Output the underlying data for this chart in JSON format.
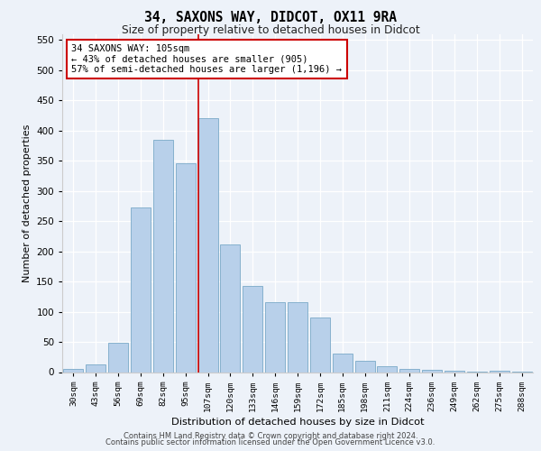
{
  "title1": "34, SAXONS WAY, DIDCOT, OX11 9RA",
  "title2": "Size of property relative to detached houses in Didcot",
  "xlabel": "Distribution of detached houses by size in Didcot",
  "ylabel": "Number of detached properties",
  "categories": [
    "30sqm",
    "43sqm",
    "56sqm",
    "69sqm",
    "82sqm",
    "95sqm",
    "107sqm",
    "120sqm",
    "133sqm",
    "146sqm",
    "159sqm",
    "172sqm",
    "185sqm",
    "198sqm",
    "211sqm",
    "224sqm",
    "236sqm",
    "249sqm",
    "262sqm",
    "275sqm",
    "288sqm"
  ],
  "values": [
    5,
    12,
    49,
    272,
    385,
    345,
    420,
    211,
    142,
    116,
    116,
    90,
    30,
    18,
    10,
    5,
    3,
    2,
    1,
    2,
    1
  ],
  "bar_color": "#b8d0ea",
  "bar_edge_color": "#7aaac8",
  "ref_line_index": 6,
  "annotation_line1": "34 SAXONS WAY: 105sqm",
  "annotation_line2": "← 43% of detached houses are smaller (905)",
  "annotation_line3": "57% of semi-detached houses are larger (1,196) →",
  "ylim_max": 560,
  "yticks": [
    0,
    50,
    100,
    150,
    200,
    250,
    300,
    350,
    400,
    450,
    500,
    550
  ],
  "footer_line1": "Contains HM Land Registry data © Crown copyright and database right 2024.",
  "footer_line2": "Contains public sector information licensed under the Open Government Licence v3.0.",
  "bg_color": "#edf2f9"
}
